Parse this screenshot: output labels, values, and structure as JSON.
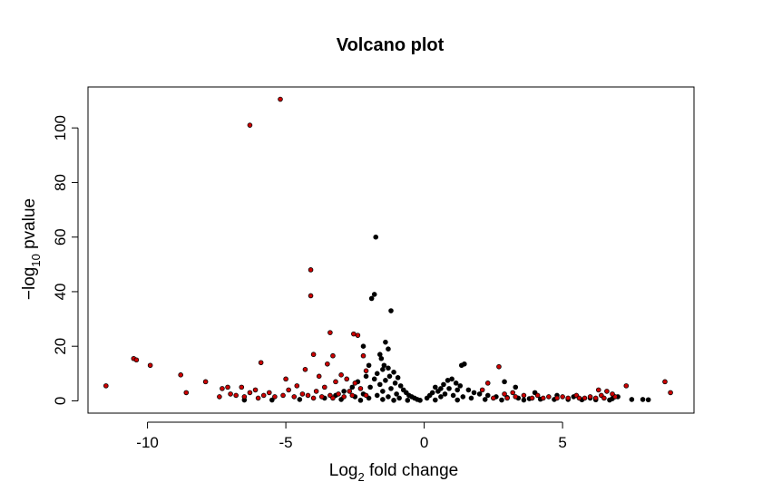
{
  "chart_data": {
    "type": "scatter",
    "title": "Volcano plot",
    "xlabel": {
      "prefix": "Log",
      "sub": "2",
      "suffix": " fold change"
    },
    "ylabel": {
      "prefix": "−log",
      "sub": "10",
      "suffix": " pvalue"
    },
    "xlim": [
      -12.15,
      9.75
    ],
    "ylim": [
      -4.5,
      115
    ],
    "x_ticks": [
      -10,
      -5,
      0,
      5
    ],
    "x_tick_labels": [
      "-10",
      "-5",
      "0",
      "5"
    ],
    "y_ticks": [
      0,
      20,
      40,
      60,
      80,
      100
    ],
    "y_tick_labels": [
      "0",
      "20",
      "40",
      "60",
      "80",
      "100"
    ],
    "grid": false,
    "series": [
      {
        "color": "#000000",
        "points": [
          [
            -1.75,
            60.0
          ],
          [
            -1.8,
            39.0
          ],
          [
            -1.9,
            37.5
          ],
          [
            -1.2,
            33.0
          ],
          [
            -1.4,
            21.5
          ],
          [
            -1.3,
            19.0
          ],
          [
            -2.2,
            20.0
          ],
          [
            -1.6,
            17.0
          ],
          [
            -1.55,
            15.5
          ],
          [
            -1.45,
            13.0
          ],
          [
            -1.5,
            11.5
          ],
          [
            -2.0,
            13.0
          ],
          [
            -1.3,
            12.0
          ],
          [
            -1.1,
            10.5
          ],
          [
            -1.7,
            10.0
          ],
          [
            -2.1,
            9.0
          ],
          [
            -1.25,
            9.0
          ],
          [
            -0.95,
            8.5
          ],
          [
            -1.8,
            8.0
          ],
          [
            -1.4,
            7.5
          ],
          [
            -2.4,
            7.0
          ],
          [
            -1.05,
            6.5
          ],
          [
            -1.6,
            6.0
          ],
          [
            -0.85,
            5.5
          ],
          [
            -2.6,
            5.0
          ],
          [
            -1.95,
            5.0
          ],
          [
            -1.2,
            4.5
          ],
          [
            -0.75,
            4.0
          ],
          [
            -2.9,
            3.5
          ],
          [
            -1.5,
            3.5
          ],
          [
            -0.65,
            3.0
          ],
          [
            -2.2,
            2.5
          ],
          [
            -1.0,
            2.5
          ],
          [
            -0.55,
            2.0
          ],
          [
            -3.2,
            2.0
          ],
          [
            -1.7,
            2.0
          ],
          [
            -0.45,
            1.5
          ],
          [
            -2.5,
            1.5
          ],
          [
            -1.3,
            1.5
          ],
          [
            -0.35,
            1.0
          ],
          [
            -3.6,
            1.0
          ],
          [
            -2.0,
            1.0
          ],
          [
            -0.9,
            1.0
          ],
          [
            -0.25,
            0.5
          ],
          [
            -4.5,
            0.5
          ],
          [
            -3.0,
            0.5
          ],
          [
            -1.5,
            0.5
          ],
          [
            -5.5,
            0.3
          ],
          [
            -6.5,
            0.3
          ],
          [
            -0.15,
            0.2
          ],
          [
            -0.6,
            0.2
          ],
          [
            -1.1,
            0.2
          ],
          [
            -2.3,
            0.2
          ],
          [
            1.45,
            13.5
          ],
          [
            1.35,
            13.0
          ],
          [
            0.4,
            5.0
          ],
          [
            0.6,
            4.5
          ],
          [
            0.85,
            7.5
          ],
          [
            1.0,
            8.0
          ],
          [
            1.15,
            6.5
          ],
          [
            0.7,
            6.0
          ],
          [
            1.3,
            5.5
          ],
          [
            0.9,
            4.5
          ],
          [
            1.2,
            4.0
          ],
          [
            0.5,
            3.5
          ],
          [
            1.6,
            4.0
          ],
          [
            0.3,
            3.0
          ],
          [
            1.8,
            3.0
          ],
          [
            0.75,
            2.5
          ],
          [
            2.0,
            2.5
          ],
          [
            1.05,
            2.0
          ],
          [
            2.3,
            2.0
          ],
          [
            0.2,
            2.0
          ],
          [
            1.4,
            1.5
          ],
          [
            2.6,
            1.5
          ],
          [
            0.6,
            1.5
          ],
          [
            3.0,
            1.2
          ],
          [
            3.4,
            1.0
          ],
          [
            0.1,
            1.0
          ],
          [
            1.7,
            1.0
          ],
          [
            3.8,
            0.8
          ],
          [
            4.2,
            0.6
          ],
          [
            4.7,
            0.5
          ],
          [
            5.2,
            0.5
          ],
          [
            5.7,
            0.4
          ],
          [
            6.2,
            0.4
          ],
          [
            6.7,
            0.3
          ],
          [
            2.2,
            0.5
          ],
          [
            0.4,
            0.3
          ],
          [
            1.2,
            0.3
          ],
          [
            2.8,
            0.3
          ],
          [
            3.6,
            0.3
          ],
          [
            2.9,
            7.0
          ],
          [
            3.3,
            5.0
          ],
          [
            4.0,
            3.0
          ],
          [
            4.8,
            2.0
          ],
          [
            5.4,
            1.5
          ],
          [
            6.0,
            1.0
          ],
          [
            6.8,
            0.8
          ],
          [
            7.5,
            0.5
          ],
          [
            7.9,
            0.5
          ],
          [
            8.1,
            0.4
          ],
          [
            7.0,
            1.5
          ]
        ]
      },
      {
        "color": "#cc0000",
        "points": [
          [
            -5.2,
            110.5
          ],
          [
            -6.3,
            101.0
          ],
          [
            -4.1,
            48.0
          ],
          [
            -4.1,
            38.5
          ],
          [
            -3.4,
            25.0
          ],
          [
            -2.55,
            24.5
          ],
          [
            -2.4,
            24.0
          ],
          [
            -4.0,
            17.0
          ],
          [
            -3.3,
            16.5
          ],
          [
            -2.2,
            16.5
          ],
          [
            -10.5,
            15.5
          ],
          [
            -10.4,
            15.0
          ],
          [
            -5.9,
            14.0
          ],
          [
            -3.5,
            13.5
          ],
          [
            -9.9,
            13.0
          ],
          [
            -4.3,
            11.5
          ],
          [
            -2.1,
            11.0
          ],
          [
            -3.0,
            9.5
          ],
          [
            -8.8,
            9.5
          ],
          [
            -3.8,
            9.0
          ],
          [
            -5.0,
            8.0
          ],
          [
            -2.8,
            8.0
          ],
          [
            -3.2,
            7.0
          ],
          [
            -7.9,
            7.0
          ],
          [
            -2.5,
            6.5
          ],
          [
            -11.5,
            5.5
          ],
          [
            -4.6,
            5.5
          ],
          [
            -7.1,
            5.0
          ],
          [
            -6.6,
            5.0
          ],
          [
            -3.6,
            5.0
          ],
          [
            -2.3,
            4.5
          ],
          [
            -7.3,
            4.5
          ],
          [
            -6.1,
            4.0
          ],
          [
            -4.9,
            4.0
          ],
          [
            -3.9,
            3.5
          ],
          [
            -2.7,
            3.5
          ],
          [
            -8.6,
            3.0
          ],
          [
            -6.3,
            3.0
          ],
          [
            -5.6,
            3.0
          ],
          [
            -4.4,
            2.5
          ],
          [
            -3.1,
            2.5
          ],
          [
            -7.0,
            2.5
          ],
          [
            -6.8,
            2.0
          ],
          [
            -5.8,
            2.0
          ],
          [
            -5.1,
            2.0
          ],
          [
            -4.2,
            2.0
          ],
          [
            -3.4,
            2.0
          ],
          [
            -2.6,
            2.0
          ],
          [
            -2.1,
            2.0
          ],
          [
            -7.4,
            1.5
          ],
          [
            -6.5,
            1.5
          ],
          [
            -5.4,
            1.5
          ],
          [
            -4.7,
            1.5
          ],
          [
            -3.7,
            1.5
          ],
          [
            -2.9,
            1.5
          ],
          [
            -6.0,
            1.0
          ],
          [
            -4.0,
            1.0
          ],
          [
            -3.3,
            1.0
          ],
          [
            2.7,
            12.5
          ],
          [
            2.3,
            6.5
          ],
          [
            2.1,
            4.0
          ],
          [
            2.9,
            2.5
          ],
          [
            3.2,
            3.0
          ],
          [
            3.6,
            2.0
          ],
          [
            4.1,
            2.0
          ],
          [
            4.5,
            1.5
          ],
          [
            5.0,
            1.5
          ],
          [
            5.5,
            2.0
          ],
          [
            6.0,
            1.5
          ],
          [
            6.4,
            2.0
          ],
          [
            6.6,
            3.5
          ],
          [
            6.9,
            1.5
          ],
          [
            7.3,
            5.5
          ],
          [
            8.7,
            7.0
          ],
          [
            8.9,
            3.0
          ],
          [
            3.9,
            1.0
          ],
          [
            4.8,
            1.0
          ],
          [
            5.8,
            1.0
          ],
          [
            6.5,
            1.0
          ],
          [
            2.5,
            1.0
          ],
          [
            3.0,
            1.0
          ],
          [
            3.3,
            1.5
          ],
          [
            4.3,
            1.0
          ],
          [
            5.2,
            1.0
          ],
          [
            5.6,
            1.0
          ],
          [
            6.2,
            1.0
          ],
          [
            6.8,
            2.5
          ],
          [
            6.3,
            4.0
          ]
        ]
      }
    ]
  }
}
